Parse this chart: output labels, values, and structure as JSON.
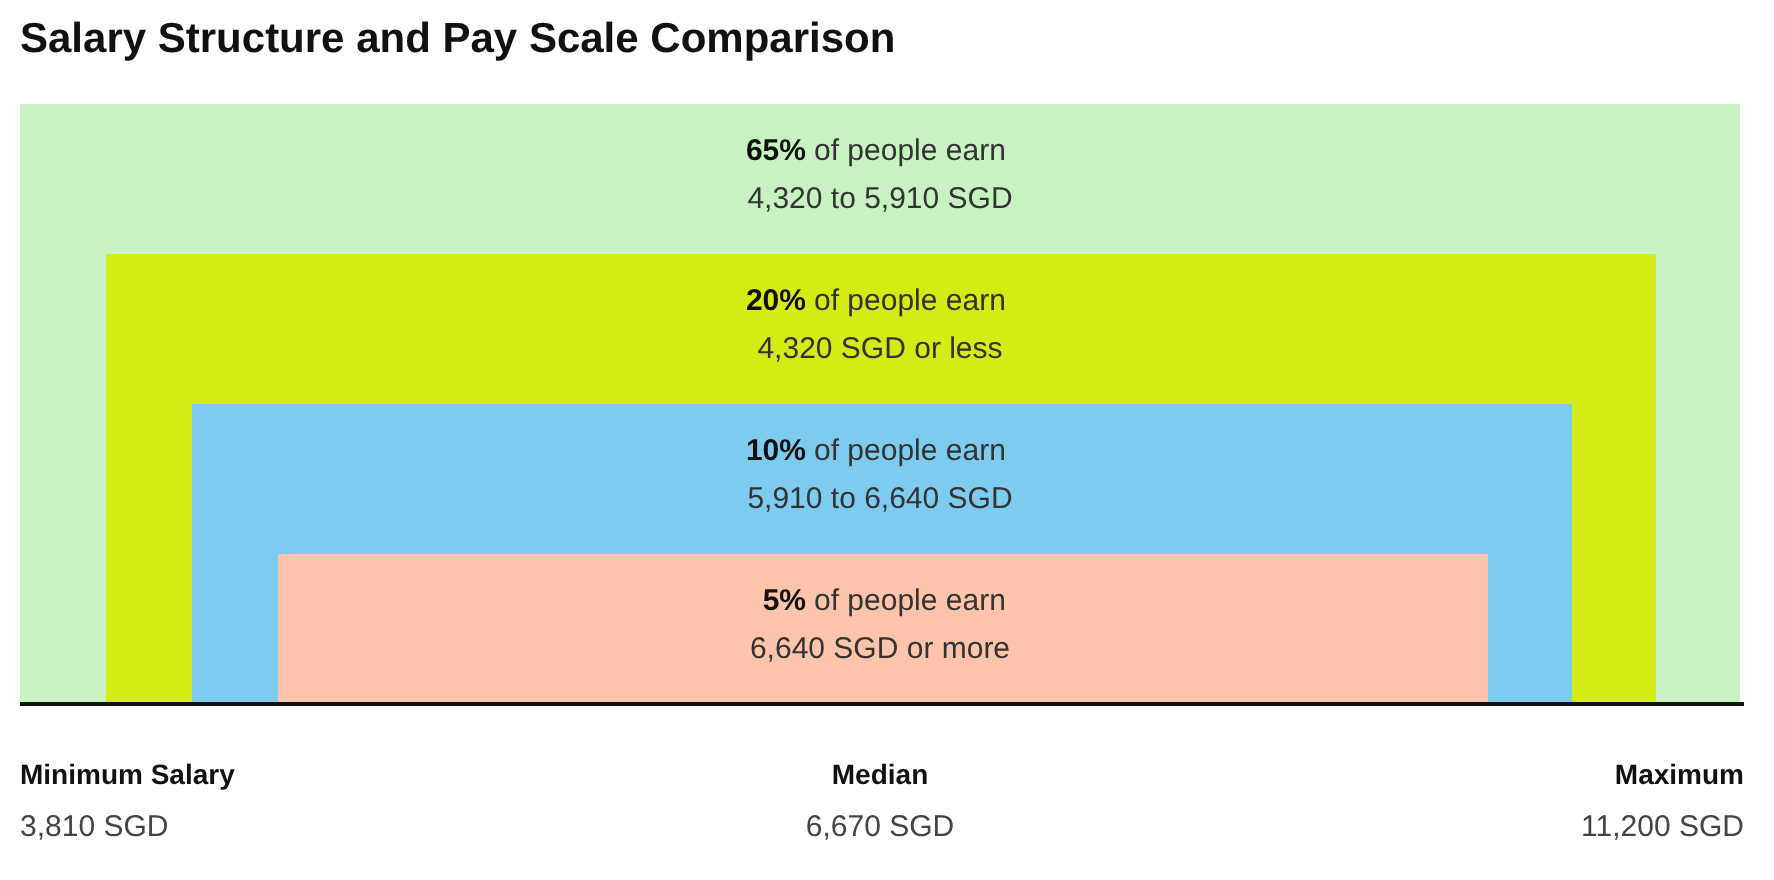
{
  "chart_data": {
    "type": "other",
    "title": "Salary Structure and Pay Scale Comparison",
    "categories": [
      "4,320 to 5,910 SGD",
      "4,320 SGD or less",
      "5,910 to 6,640 SGD",
      "6,640 SGD or more"
    ],
    "values": [
      65,
      20,
      10,
      5
    ],
    "value_labels": [
      "65%",
      "20%",
      "10%",
      "5%"
    ],
    "colors": [
      "#c8f2c2",
      "#d4eb14",
      "#7ecbf0",
      "#fdc3ab"
    ],
    "annotations": [
      "of people earn",
      "Minimum Salary",
      "3,810 SGD",
      "Median",
      "6,670 SGD",
      "Maximum",
      "11,200 SGD"
    ]
  }
}
